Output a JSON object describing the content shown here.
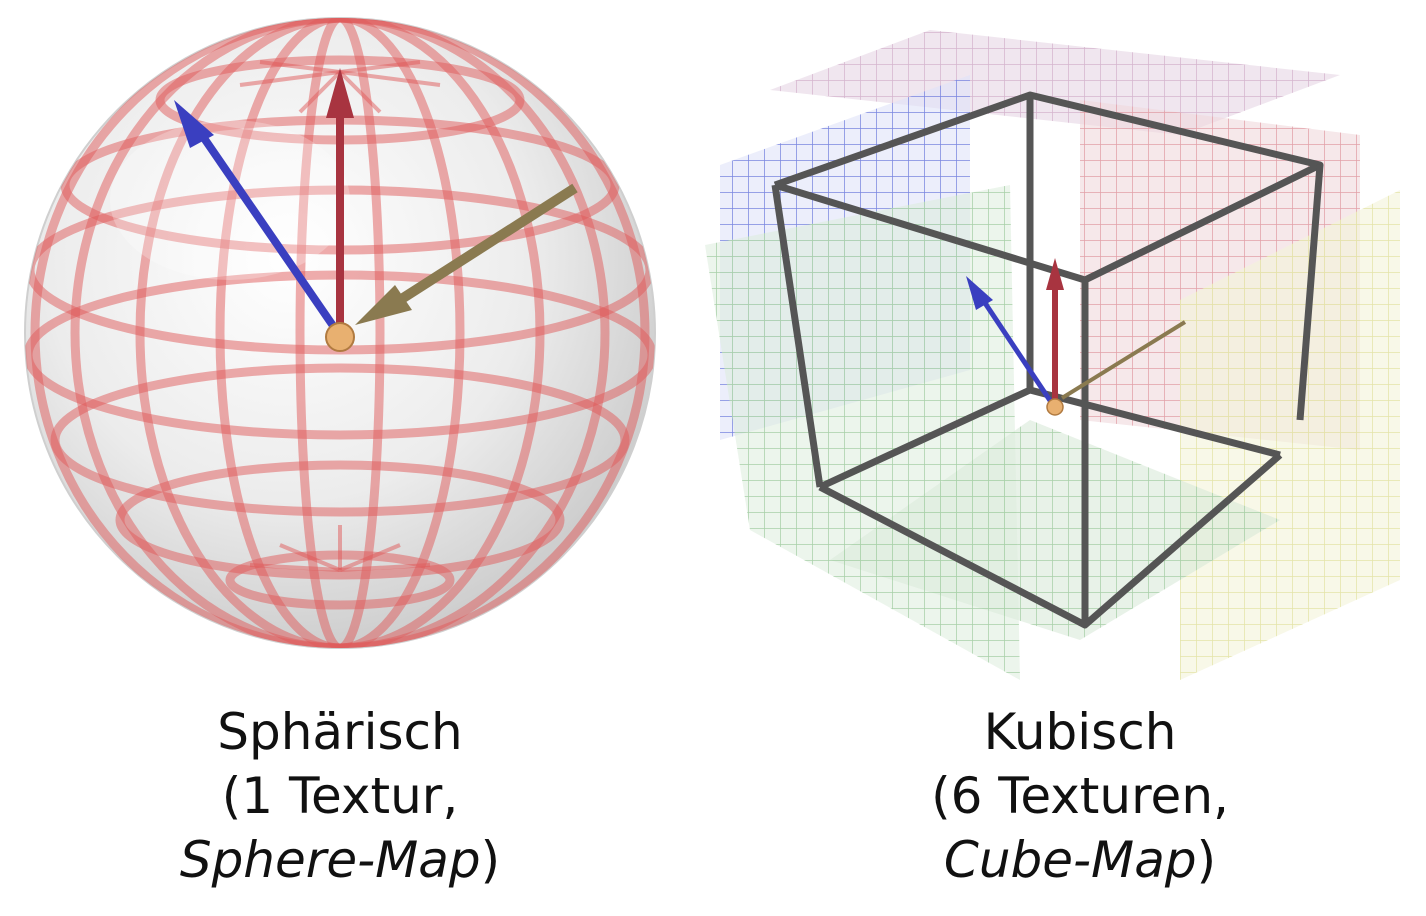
{
  "figures": [
    {
      "id": "sphere",
      "caption": {
        "line1": "Sphärisch",
        "line2": "(1 Textur,",
        "line3_italic": "Sphere-Map",
        "line3_close": ")"
      },
      "colors": {
        "grid": "#e05a5a",
        "arrow_up": "#a83440",
        "arrow_left": "#3a3fc0",
        "arrow_right": "#8a7a50"
      }
    },
    {
      "id": "cube",
      "caption": {
        "line1": "Kubisch",
        "line2": "(6 Texturen,",
        "line3_italic": "Cube-Map",
        "line3_close": ")"
      },
      "colors": {
        "top": "#c9a0c0",
        "left": "#7a86e0",
        "back": "#e2a0a8",
        "right": "#e4e4a8",
        "front": "#a8d0a8",
        "bottom": "#a8d4a8",
        "frame": "#555555"
      }
    }
  ]
}
